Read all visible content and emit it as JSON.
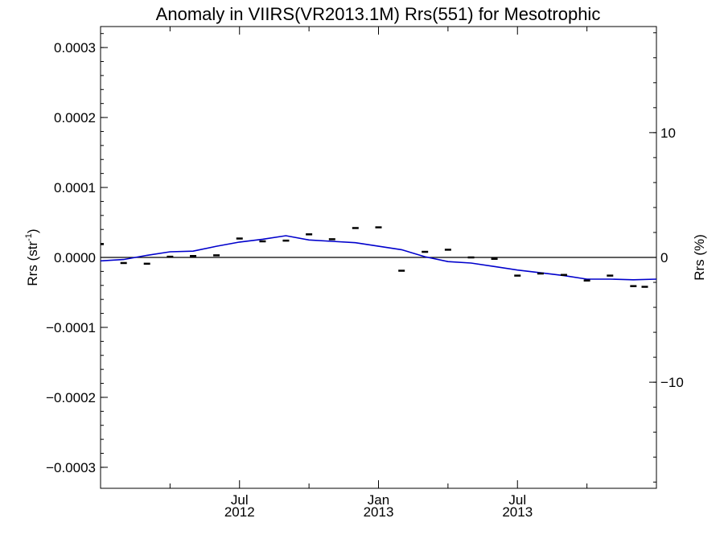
{
  "chart_data": {
    "type": "line",
    "title": "Anomaly in VIIRS(VR2013.1M) Rrs(551) for Mesotrophic",
    "ylabel": "Rrs (str",
    "ylabel_sup": "-1",
    "ylabel_close": ")",
    "y2label": "Rrs (%)",
    "xlim": [
      2012.0,
      2014.0
    ],
    "ylim": [
      -0.00033,
      0.00033
    ],
    "y2lim": [
      -18.5,
      18.5
    ],
    "grid": false,
    "x_ticks": [
      {
        "x": 2012.5,
        "line1": "Jul",
        "line2": "2012"
      },
      {
        "x": 2013.0,
        "line1": "Jan",
        "line2": "2013"
      },
      {
        "x": 2013.5,
        "line1": "Jul",
        "line2": "2013"
      }
    ],
    "x_minor_ticks": [
      2012.25,
      2012.75,
      2013.25,
      2013.75
    ],
    "y_ticks": [
      {
        "v": 0.0003,
        "label": "0.0003"
      },
      {
        "v": 0.0002,
        "label": "0.0002"
      },
      {
        "v": 0.0001,
        "label": "0.0001"
      },
      {
        "v": 0.0,
        "label": "0.0000"
      },
      {
        "v": -0.0001,
        "label": "−0.0001"
      },
      {
        "v": -0.0002,
        "label": "−0.0002"
      },
      {
        "v": -0.0003,
        "label": "−0.0003"
      }
    ],
    "y2_ticks": [
      {
        "v": 10,
        "label": "10"
      },
      {
        "v": 0,
        "label": "0"
      },
      {
        "v": -10,
        "label": "−10"
      }
    ],
    "series": [
      {
        "kind": "markers",
        "color": "#000000",
        "x": [
          2012.0,
          2012.083,
          2012.167,
          2012.25,
          2012.333,
          2012.417,
          2012.5,
          2012.583,
          2012.667,
          2012.75,
          2012.833,
          2012.917,
          2013.0,
          2013.083,
          2013.167,
          2013.25,
          2013.333,
          2013.417,
          2013.5,
          2013.583,
          2013.667,
          2013.75,
          2013.833,
          2013.917,
          2013.958
        ],
        "values": [
          1.9e-05,
          -8e-06,
          -9e-06,
          1e-06,
          2e-06,
          3e-06,
          2.7e-05,
          2.3e-05,
          2.4e-05,
          3.3e-05,
          2.6e-05,
          4.2e-05,
          4.3e-05,
          -1.9e-05,
          8e-06,
          1.1e-05,
          0.0,
          -2e-06,
          -2.6e-05,
          -2.3e-05,
          -2.5e-05,
          -3.3e-05,
          -2.6e-05,
          -4.1e-05,
          -4.2e-05
        ]
      },
      {
        "kind": "line",
        "color": "#0000cc",
        "x": [
          2012.0,
          2012.083,
          2012.167,
          2012.25,
          2012.333,
          2012.417,
          2012.5,
          2012.583,
          2012.667,
          2012.75,
          2012.833,
          2012.917,
          2013.0,
          2013.083,
          2013.167,
          2013.25,
          2013.333,
          2013.417,
          2013.5,
          2013.583,
          2013.667,
          2013.75,
          2013.833,
          2013.917,
          2014.0
        ],
        "values": [
          -5e-06,
          -3e-06,
          3e-06,
          8e-06,
          9e-06,
          1.6e-05,
          2.2e-05,
          2.6e-05,
          3.1e-05,
          2.5e-05,
          2.3e-05,
          2.1e-05,
          1.6e-05,
          1.1e-05,
          1e-06,
          -6e-06,
          -8e-06,
          -1.3e-05,
          -1.8e-05,
          -2.2e-05,
          -2.6e-05,
          -3.1e-05,
          -3.1e-05,
          -3.2e-05,
          -3.1e-05
        ]
      }
    ],
    "reference_line": {
      "v": 0.0,
      "color": "#000000"
    }
  }
}
